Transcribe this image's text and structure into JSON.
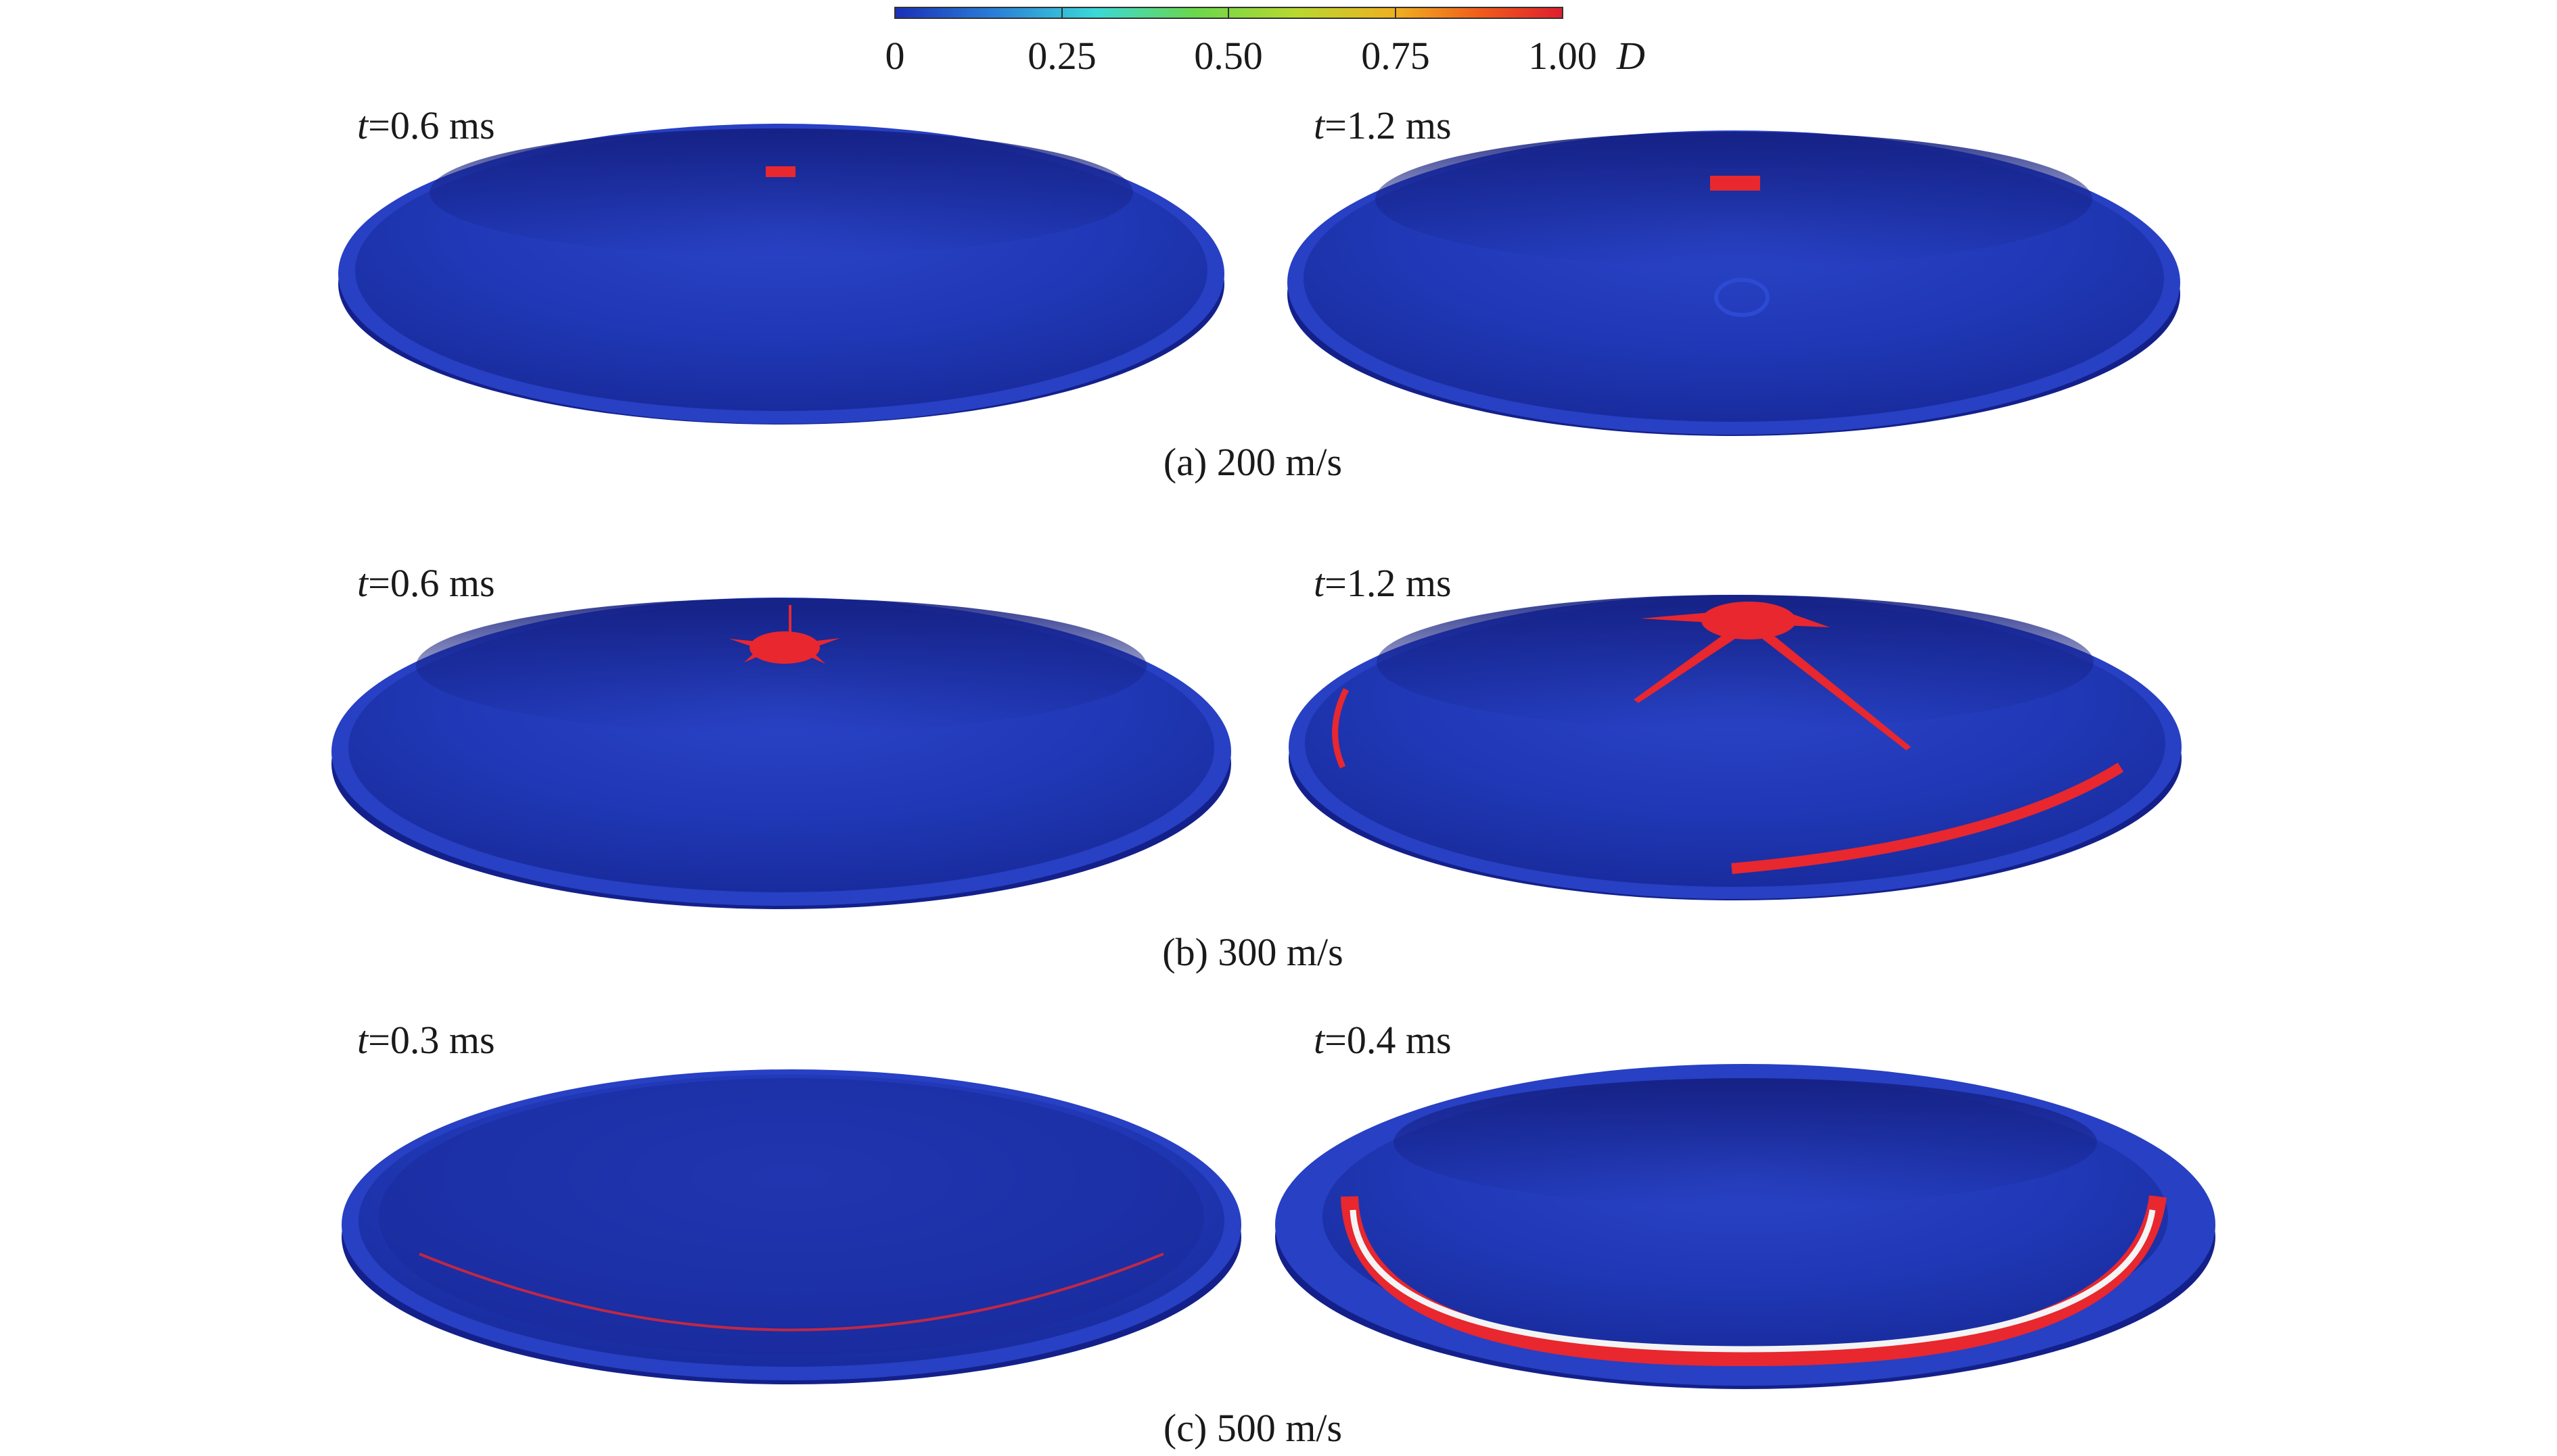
{
  "colorbar": {
    "tick_labels": [
      "0",
      "0.25",
      "0.50",
      "0.75",
      "1.00"
    ],
    "variable": "D",
    "range": [
      0,
      1
    ],
    "colormap": [
      "#1a2fb8",
      "#2a7fd8",
      "#3ad8d8",
      "#6ad84a",
      "#b8d830",
      "#f0b020",
      "#f05a1a",
      "#e01e2e"
    ]
  },
  "colors": {
    "plate_body": "#1f35b2",
    "plate_rim": "#2740c4",
    "plate_shadow": "#14208a",
    "damage": "#e8272f",
    "crack_white": "#f4f4f4"
  },
  "rows": [
    {
      "caption": "(a) 200 m/s",
      "panels": [
        {
          "time_var": "t",
          "time_value": "=0.6 ms"
        },
        {
          "time_var": "t",
          "time_value": "=1.2 ms"
        }
      ]
    },
    {
      "caption": "(b) 300 m/s",
      "panels": [
        {
          "time_var": "t",
          "time_value": "=0.6 ms"
        },
        {
          "time_var": "t",
          "time_value": "=1.2 ms"
        }
      ]
    },
    {
      "caption": "(c) 500 m/s",
      "panels": [
        {
          "time_var": "t",
          "time_value": "=0.3 ms"
        },
        {
          "time_var": "t",
          "time_value": "=0.4 ms"
        }
      ]
    }
  ]
}
